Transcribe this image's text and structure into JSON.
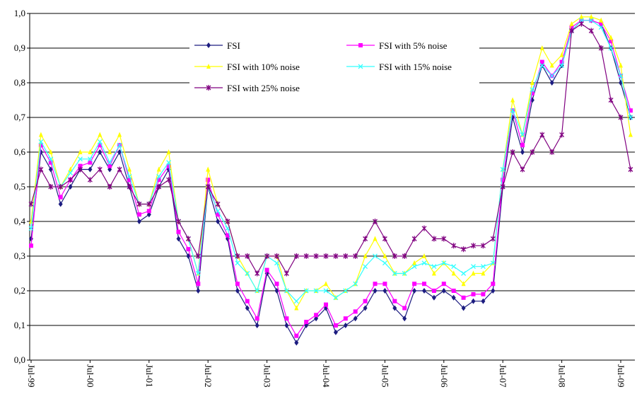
{
  "chart_data": {
    "type": "line",
    "categories": [
      "Jul-99",
      null,
      null,
      null,
      null,
      null,
      "Jul-00",
      null,
      null,
      null,
      null,
      null,
      "Jul-01",
      null,
      null,
      null,
      null,
      null,
      "Jul-02",
      null,
      null,
      null,
      null,
      null,
      "Jul-03",
      null,
      null,
      null,
      null,
      null,
      "Jul-04",
      null,
      null,
      null,
      null,
      null,
      "Jul-05",
      null,
      null,
      null,
      null,
      null,
      "Jul-06",
      null,
      null,
      null,
      null,
      null,
      "Jul-07",
      null,
      null,
      null,
      null,
      null,
      "Jul-08",
      null,
      null,
      null,
      null,
      null,
      "Jul-09",
      null
    ],
    "ylim": [
      0,
      1
    ],
    "yticks": [
      {
        "value": 0,
        "label": "0,0"
      },
      {
        "value": 0.1,
        "label": "0,1"
      },
      {
        "value": 0.2,
        "label": "0,2"
      },
      {
        "value": 0.3,
        "label": "0,3"
      },
      {
        "value": 0.4,
        "label": "0,4"
      },
      {
        "value": 0.5,
        "label": "0,5"
      },
      {
        "value": 0.6,
        "label": "0,6"
      },
      {
        "value": 0.7,
        "label": "0,7"
      },
      {
        "value": 0.8,
        "label": "0,8"
      },
      {
        "value": 0.9,
        "label": "0,9"
      },
      {
        "value": 1,
        "label": "1,0"
      }
    ],
    "grid": true,
    "series": [
      {
        "name": "FSI",
        "color": "#1c1c80",
        "marker": "diamond",
        "values": [
          0.35,
          0.6,
          0.55,
          0.45,
          0.5,
          0.55,
          0.55,
          0.6,
          0.55,
          0.6,
          0.5,
          0.4,
          0.42,
          0.5,
          0.55,
          0.35,
          0.3,
          0.2,
          0.5,
          0.4,
          0.35,
          0.2,
          0.15,
          0.1,
          0.25,
          0.2,
          0.1,
          0.05,
          0.1,
          0.12,
          0.15,
          0.08,
          0.1,
          0.12,
          0.15,
          0.2,
          0.2,
          0.15,
          0.12,
          0.2,
          0.2,
          0.18,
          0.2,
          0.18,
          0.15,
          0.17,
          0.17,
          0.2,
          0.5,
          0.7,
          0.6,
          0.75,
          0.85,
          0.8,
          0.85,
          0.95,
          0.98,
          0.98,
          0.97,
          0.9,
          0.8,
          0.7
        ]
      },
      {
        "name": "FSI with 5% noise",
        "color": "#ff00ff",
        "marker": "square",
        "values": [
          0.33,
          0.62,
          0.57,
          0.47,
          0.52,
          0.56,
          0.57,
          0.62,
          0.56,
          0.62,
          0.52,
          0.42,
          0.43,
          0.52,
          0.56,
          0.37,
          0.32,
          0.22,
          0.52,
          0.42,
          0.36,
          0.22,
          0.17,
          0.12,
          0.26,
          0.22,
          0.12,
          0.07,
          0.11,
          0.13,
          0.16,
          0.1,
          0.12,
          0.14,
          0.17,
          0.22,
          0.22,
          0.17,
          0.15,
          0.22,
          0.22,
          0.2,
          0.22,
          0.2,
          0.18,
          0.19,
          0.19,
          0.22,
          0.52,
          0.72,
          0.62,
          0.77,
          0.86,
          0.82,
          0.86,
          0.96,
          0.98,
          0.98,
          0.97,
          0.92,
          0.82,
          0.72
        ]
      },
      {
        "name": "FSI with 10% noise",
        "color": "#ffff00",
        "marker": "triangle",
        "values": [
          0.4,
          0.65,
          0.6,
          0.5,
          0.55,
          0.6,
          0.6,
          0.65,
          0.6,
          0.65,
          0.55,
          0.45,
          0.45,
          0.55,
          0.6,
          0.4,
          0.35,
          0.25,
          0.55,
          0.45,
          0.4,
          0.3,
          0.25,
          0.2,
          0.3,
          0.3,
          0.2,
          0.15,
          0.2,
          0.2,
          0.22,
          0.18,
          0.2,
          0.22,
          0.3,
          0.35,
          0.3,
          0.25,
          0.25,
          0.28,
          0.3,
          0.25,
          0.28,
          0.25,
          0.22,
          0.25,
          0.25,
          0.28,
          0.55,
          0.75,
          0.65,
          0.8,
          0.9,
          0.85,
          0.88,
          0.97,
          0.99,
          0.99,
          0.98,
          0.93,
          0.85,
          0.65
        ]
      },
      {
        "name": "FSI with 15% noise",
        "color": "#33ffff",
        "marker": "x",
        "values": [
          0.38,
          0.63,
          0.58,
          0.5,
          0.54,
          0.58,
          0.58,
          0.63,
          0.57,
          0.62,
          0.53,
          0.45,
          0.45,
          0.53,
          0.57,
          0.4,
          0.35,
          0.25,
          0.5,
          0.43,
          0.38,
          0.28,
          0.25,
          0.2,
          0.3,
          0.28,
          0.2,
          0.17,
          0.2,
          0.2,
          0.2,
          0.18,
          0.2,
          0.22,
          0.27,
          0.3,
          0.28,
          0.25,
          0.25,
          0.27,
          0.28,
          0.27,
          0.28,
          0.27,
          0.25,
          0.27,
          0.27,
          0.28,
          0.55,
          0.72,
          0.65,
          0.78,
          0.85,
          0.82,
          0.85,
          0.95,
          0.98,
          0.98,
          0.96,
          0.9,
          0.82,
          0.7
        ]
      },
      {
        "name": "FSI with 25% noise",
        "color": "#800080",
        "marker": "star",
        "values": [
          0.45,
          0.55,
          0.5,
          0.5,
          0.52,
          0.55,
          0.52,
          0.55,
          0.5,
          0.55,
          0.5,
          0.45,
          0.45,
          0.5,
          0.52,
          0.4,
          0.35,
          0.3,
          0.5,
          0.45,
          0.4,
          0.3,
          0.3,
          0.25,
          0.3,
          0.3,
          0.25,
          0.3,
          0.3,
          0.3,
          0.3,
          0.3,
          0.3,
          0.3,
          0.35,
          0.4,
          0.35,
          0.3,
          0.3,
          0.35,
          0.38,
          0.35,
          0.35,
          0.33,
          0.32,
          0.33,
          0.33,
          0.35,
          0.5,
          0.6,
          0.55,
          0.6,
          0.65,
          0.6,
          0.65,
          0.95,
          0.97,
          0.95,
          0.9,
          0.75,
          0.7,
          0.55
        ]
      }
    ]
  }
}
